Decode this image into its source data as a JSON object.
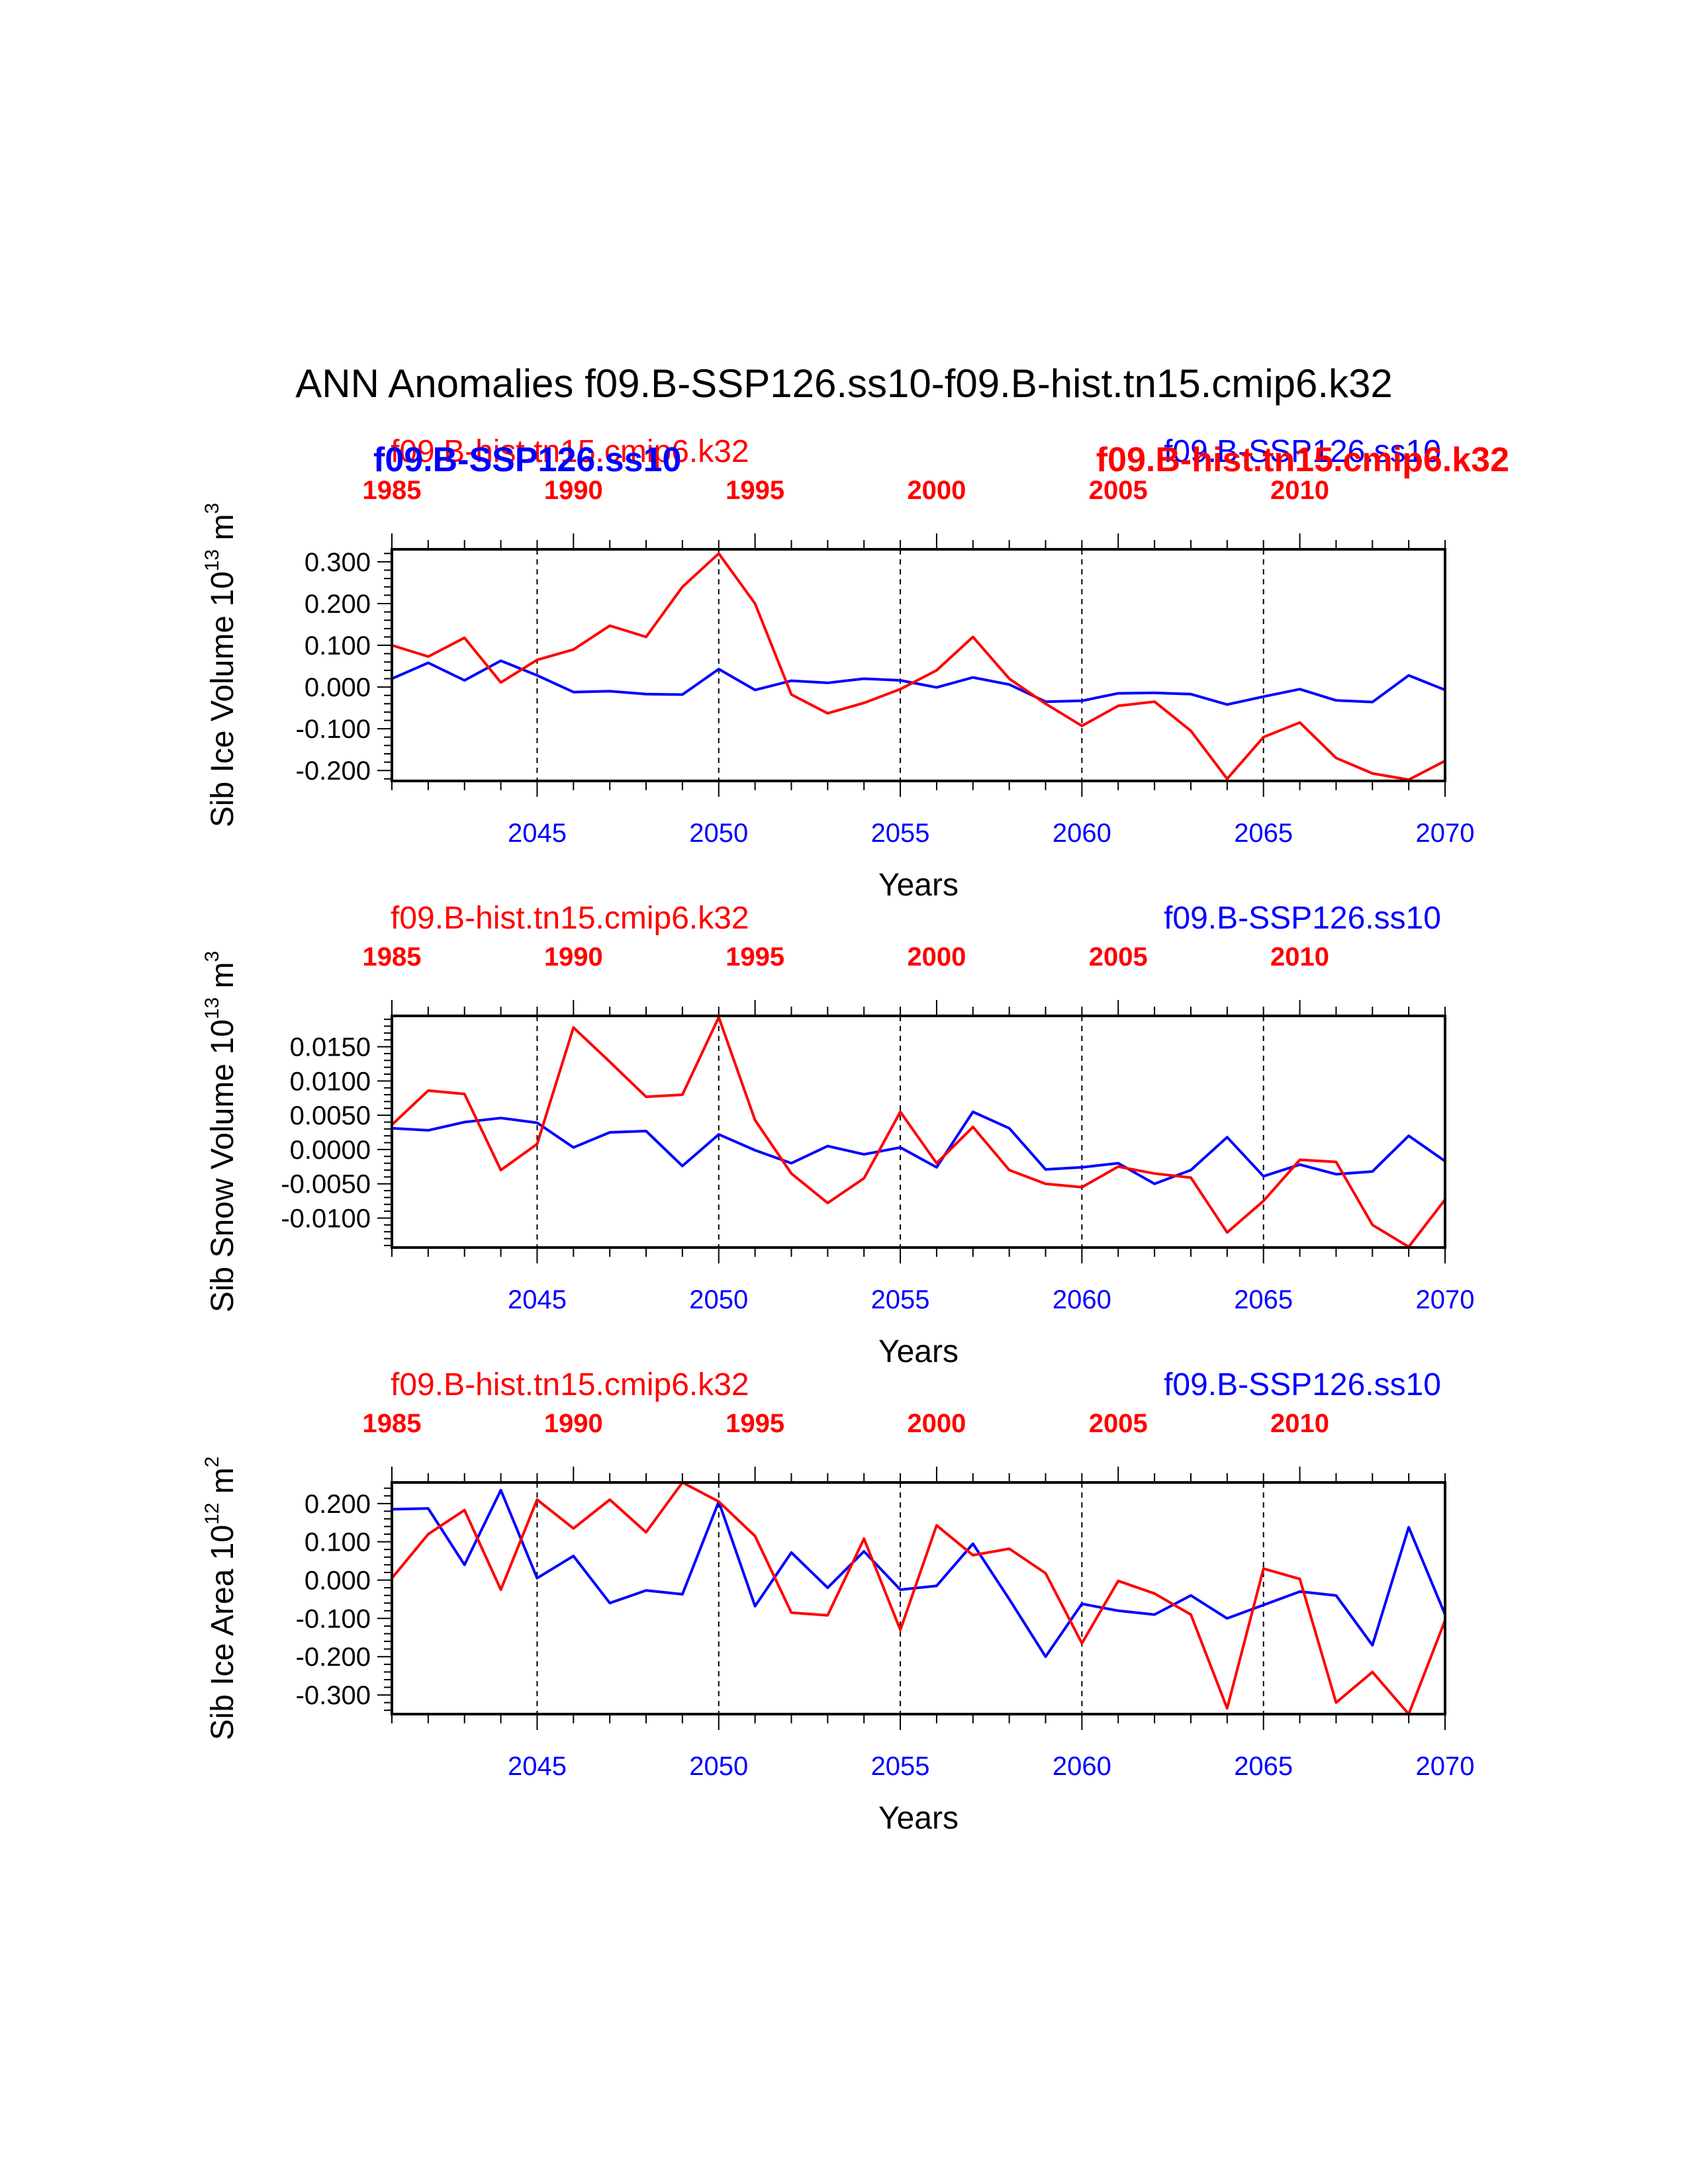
{
  "title": "ANN Anomalies f09.B-SSP126.ss10-f09.B-hist.tn15.cmip6.k32",
  "colors": {
    "ssp": "#0000ff",
    "hist": "#ff0000",
    "axis": "#000000"
  },
  "legend": {
    "hist_name": "f09.B-hist.tn15.cmip6.k32",
    "ssp_name": "f09.B-SSP126.ss10"
  },
  "chart_data": [
    {
      "type": "line",
      "ylabel": "Sib Ice Volume 10",
      "ylabel_exp": "13",
      "ylabel_unit": " m",
      "ylabel_unit_exp": "3",
      "xlabel": "Years",
      "ylim": [
        -0.225,
        0.33
      ],
      "yticks": [
        0.3,
        0.2,
        0.1,
        0.0,
        -0.1,
        -0.2
      ],
      "ytick_labels": [
        "0.300",
        "0.200",
        "0.100",
        "0.000",
        "-0.100",
        "-0.200"
      ],
      "ymajor": 0.1,
      "yminor": 0.02,
      "x_bottom_ticks": [
        "2045",
        "2050",
        "2055",
        "2060",
        "2065",
        "2070"
      ],
      "x_top_ticks": [
        "1985",
        "1990",
        "1995",
        "2000",
        "2005",
        "2010"
      ],
      "top_label_overlap": true,
      "series": [
        {
          "name": "f09.B-SSP126.ss10",
          "x": [
            2041,
            2042,
            2043,
            2044,
            2045,
            2046,
            2047,
            2048,
            2049,
            2050,
            2051,
            2052,
            2053,
            2054,
            2055,
            2056,
            2057,
            2058,
            2059,
            2060,
            2061,
            2062,
            2063,
            2064,
            2065,
            2066,
            2067,
            2068,
            2069,
            2070
          ],
          "values": [
            0.02,
            0.058,
            0.016,
            0.063,
            0.028,
            -0.012,
            -0.01,
            -0.017,
            -0.018,
            0.043,
            -0.007,
            0.015,
            0.01,
            0.02,
            0.016,
            -0.001,
            0.023,
            0.006,
            -0.035,
            -0.033,
            -0.015,
            -0.014,
            -0.017,
            -0.042,
            -0.023,
            -0.005,
            -0.032,
            -0.036,
            0.028,
            -0.007
          ]
        },
        {
          "name": "f09.B-hist.tn15.cmip6.k32",
          "x": [
            1985,
            1986,
            1987,
            1988,
            1989,
            1990,
            1991,
            1992,
            1993,
            1994,
            1995,
            1996,
            1997,
            1998,
            1999,
            2000,
            2001,
            2002,
            2003,
            2004,
            2005,
            2006,
            2007,
            2008,
            2009,
            2010,
            2011,
            2012,
            2013,
            2014
          ],
          "values": [
            0.1,
            0.073,
            0.118,
            0.011,
            0.065,
            0.09,
            0.147,
            0.12,
            0.24,
            0.32,
            0.2,
            -0.018,
            -0.063,
            -0.038,
            -0.005,
            0.04,
            0.12,
            0.02,
            -0.04,
            -0.093,
            -0.045,
            -0.035,
            -0.105,
            -0.22,
            -0.12,
            -0.085,
            -0.17,
            -0.207,
            -0.222,
            -0.177
          ]
        }
      ]
    },
    {
      "type": "line",
      "ylabel": "Sib Snow Volume 10",
      "ylabel_exp": "13",
      "ylabel_unit": " m",
      "ylabel_unit_exp": "3",
      "xlabel": "Years",
      "ylim": [
        -0.0143,
        0.0195
      ],
      "yticks": [
        0.015,
        0.01,
        0.005,
        0.0,
        -0.005,
        -0.01
      ],
      "ytick_labels": [
        "0.0150",
        "0.0100",
        "0.0050",
        "0.0000",
        "-0.0050",
        "-0.0100"
      ],
      "ymajor": 0.005,
      "yminor": 0.001,
      "x_bottom_ticks": [
        "2045",
        "2050",
        "2055",
        "2060",
        "2065",
        "2070"
      ],
      "x_top_ticks": [
        "1985",
        "1990",
        "1995",
        "2000",
        "2005",
        "2010"
      ],
      "top_label_overlap": false,
      "series": [
        {
          "name": "f09.B-SSP126.ss10",
          "x": [
            2041,
            2042,
            2043,
            2044,
            2045,
            2046,
            2047,
            2048,
            2049,
            2050,
            2051,
            2052,
            2053,
            2054,
            2055,
            2056,
            2057,
            2058,
            2059,
            2060,
            2061,
            2062,
            2063,
            2064,
            2065,
            2066,
            2067,
            2068,
            2069,
            2070
          ],
          "values": [
            0.0031,
            0.0028,
            0.004,
            0.0046,
            0.0039,
            0.0003,
            0.0025,
            0.0027,
            -0.0024,
            0.0022,
            -0.0001,
            -0.002,
            0.0005,
            -0.0007,
            0.0003,
            -0.0026,
            0.0055,
            0.0031,
            -0.0029,
            -0.0026,
            -0.002,
            -0.005,
            -0.003,
            0.0018,
            -0.0039,
            -0.0022,
            -0.0036,
            -0.0032,
            0.002,
            -0.0017
          ]
        },
        {
          "name": "f09.B-hist.tn15.cmip6.k32",
          "x": [
            1985,
            1986,
            1987,
            1988,
            1989,
            1990,
            1991,
            1992,
            1993,
            1994,
            1995,
            1996,
            1997,
            1998,
            1999,
            2000,
            2001,
            2002,
            2003,
            2004,
            2005,
            2006,
            2007,
            2008,
            2009,
            2010,
            2011,
            2012,
            2013,
            2014
          ],
          "values": [
            0.0036,
            0.0086,
            0.0081,
            -0.003,
            0.0008,
            0.0178,
            0.0128,
            0.0077,
            0.008,
            0.0193,
            0.0043,
            -0.0035,
            -0.0078,
            -0.0042,
            0.0055,
            -0.002,
            0.0033,
            -0.003,
            -0.005,
            -0.0055,
            -0.0025,
            -0.0035,
            -0.0041,
            -0.0121,
            -0.0075,
            -0.0015,
            -0.0018,
            -0.011,
            -0.0142,
            -0.0073
          ]
        }
      ]
    },
    {
      "type": "line",
      "ylabel": "Sib Ice Area 10",
      "ylabel_exp": "12",
      "ylabel_unit": " m",
      "ylabel_unit_exp": "2",
      "xlabel": "Years",
      "ylim": [
        -0.35,
        0.255
      ],
      "yticks": [
        0.2,
        0.1,
        0.0,
        -0.1,
        -0.2,
        -0.3
      ],
      "ytick_labels": [
        "0.200",
        "0.100",
        "0.000",
        "-0.100",
        "-0.200",
        "-0.300"
      ],
      "ymajor": 0.1,
      "yminor": 0.02,
      "x_bottom_ticks": [
        "2045",
        "2050",
        "2055",
        "2060",
        "2065",
        "2070"
      ],
      "x_top_ticks": [
        "1985",
        "1990",
        "1995",
        "2000",
        "2005",
        "2010"
      ],
      "top_label_overlap": false,
      "series": [
        {
          "name": "f09.B-SSP126.ss10",
          "x": [
            2041,
            2042,
            2043,
            2044,
            2045,
            2046,
            2047,
            2048,
            2049,
            2050,
            2051,
            2052,
            2053,
            2054,
            2055,
            2056,
            2057,
            2058,
            2059,
            2060,
            2061,
            2062,
            2063,
            2064,
            2065,
            2066,
            2067,
            2068,
            2069,
            2070
          ],
          "values": [
            0.185,
            0.187,
            0.04,
            0.235,
            0.005,
            0.063,
            -0.06,
            -0.027,
            -0.037,
            0.205,
            -0.068,
            0.072,
            -0.02,
            0.075,
            -0.025,
            -0.015,
            0.095,
            -0.05,
            -0.2,
            -0.062,
            -0.08,
            -0.09,
            -0.04,
            -0.1,
            -0.065,
            -0.03,
            -0.04,
            -0.17,
            0.138,
            -0.09
          ]
        },
        {
          "name": "f09.B-hist.tn15.cmip6.k32",
          "x": [
            1985,
            1986,
            1987,
            1988,
            1989,
            1990,
            1991,
            1992,
            1993,
            1994,
            1995,
            1996,
            1997,
            1998,
            1999,
            2000,
            2001,
            2002,
            2003,
            2004,
            2005,
            2006,
            2007,
            2008,
            2009,
            2010,
            2011,
            2012,
            2013,
            2014
          ],
          "values": [
            0.005,
            0.12,
            0.183,
            -0.025,
            0.21,
            0.135,
            0.21,
            0.125,
            0.255,
            0.205,
            0.115,
            -0.085,
            -0.092,
            0.108,
            -0.13,
            0.143,
            0.065,
            0.082,
            0.018,
            -0.165,
            -0.002,
            -0.035,
            -0.09,
            -0.335,
            0.03,
            0.003,
            -0.32,
            -0.24,
            -0.35,
            -0.105
          ]
        }
      ]
    }
  ]
}
